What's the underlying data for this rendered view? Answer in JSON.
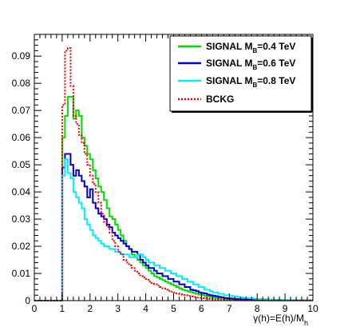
{
  "chart_data": {
    "type": "line",
    "title": "",
    "xlabel": "γ(h)=E(h)/M",
    "xlabel_sub": "h",
    "ylabel": "",
    "xlim": [
      0,
      10
    ],
    "ylim": [
      0,
      0.098
    ],
    "x_ticks": [
      "0",
      "1",
      "2",
      "3",
      "4",
      "5",
      "6",
      "7",
      "8",
      "9",
      "10"
    ],
    "y_ticks": [
      "0",
      "0.01",
      "0.02",
      "0.03",
      "0.04",
      "0.05",
      "0.06",
      "0.07",
      "0.08",
      "0.09"
    ],
    "grid": false,
    "legend_position": "top-right",
    "bin_width": 0.1,
    "series": [
      {
        "name": "SIGNAL M",
        "name_sub": "B",
        "name_suffix": "=0.4 TeV",
        "color": "#00dd00",
        "style": "solid",
        "x_start": 1.0,
        "values": [
          0.06,
          0.068,
          0.075,
          0.075,
          0.067,
          0.07,
          0.068,
          0.06,
          0.057,
          0.054,
          0.052,
          0.048,
          0.045,
          0.042,
          0.04,
          0.037,
          0.034,
          0.031,
          0.03,
          0.028,
          0.026,
          0.024,
          0.022,
          0.02,
          0.019,
          0.017,
          0.016,
          0.015,
          0.014,
          0.013,
          0.012,
          0.011,
          0.01,
          0.009,
          0.0085,
          0.008,
          0.0075,
          0.007,
          0.0065,
          0.006,
          0.0055,
          0.005,
          0.0045,
          0.004,
          0.0037,
          0.0034,
          0.0031,
          0.0028,
          0.0025,
          0.0022,
          0.002,
          0.0018,
          0.0016,
          0.0014,
          0.0012,
          0.001,
          0.0009,
          0.0008,
          0.0007,
          0.0006,
          0.0005,
          0.0005,
          0.0004,
          0.0004,
          0.0003,
          0.0003,
          0.0002,
          0.0002,
          0.0002,
          0.0001,
          0.0001,
          0.0001,
          0.0001,
          0.0001,
          0.0001,
          0.0001,
          0.0001,
          0.0001,
          0.0001,
          0.0001,
          0.0001,
          0.0001,
          0.0001,
          0.0001,
          0.0001,
          0.0001,
          0.0001,
          0.0001,
          0.0001,
          0.0001
        ]
      },
      {
        "name": "SIGNAL M",
        "name_sub": "B",
        "name_suffix": "=0.6 TeV",
        "color": "#0000cc",
        "style": "solid",
        "x_start": 1.0,
        "values": [
          0.049,
          0.054,
          0.054,
          0.05,
          0.046,
          0.048,
          0.046,
          0.044,
          0.042,
          0.038,
          0.041,
          0.036,
          0.034,
          0.032,
          0.031,
          0.03,
          0.028,
          0.027,
          0.025,
          0.024,
          0.023,
          0.022,
          0.021,
          0.02,
          0.019,
          0.018,
          0.018,
          0.017,
          0.015,
          0.014,
          0.013,
          0.012,
          0.012,
          0.011,
          0.01,
          0.01,
          0.009,
          0.009,
          0.008,
          0.008,
          0.007,
          0.007,
          0.006,
          0.006,
          0.005,
          0.005,
          0.004,
          0.0038,
          0.0035,
          0.003,
          0.0028,
          0.0026,
          0.0022,
          0.002,
          0.0018,
          0.0016,
          0.0014,
          0.0012,
          0.001,
          0.0009,
          0.0008,
          0.0007,
          0.0006,
          0.0005,
          0.0005,
          0.0004,
          0.0004,
          0.0003,
          0.0003,
          0.0003,
          0.0002,
          0.0002,
          0.0002,
          0.0002,
          0.0001,
          0.0001,
          0.0001,
          0.0001,
          0.0001,
          0.0001,
          0.0001,
          0.0001,
          0.0001,
          0.0001,
          0.0001,
          0.0001,
          0.0001,
          0.0001,
          0.0001,
          0.0001
        ]
      },
      {
        "name": "SIGNAL M",
        "name_sub": "B",
        "name_suffix": "=0.8 TeV",
        "color": "#00eeff",
        "style": "solid",
        "x_start": 1.0,
        "values": [
          0.046,
          0.052,
          0.047,
          0.045,
          0.04,
          0.038,
          0.036,
          0.034,
          0.03,
          0.028,
          0.026,
          0.024,
          0.023,
          0.022,
          0.021,
          0.02,
          0.02,
          0.019,
          0.019,
          0.018,
          0.018,
          0.017,
          0.017,
          0.017,
          0.016,
          0.016,
          0.016,
          0.017,
          0.017,
          0.016,
          0.015,
          0.014,
          0.014,
          0.013,
          0.013,
          0.012,
          0.012,
          0.011,
          0.011,
          0.01,
          0.01,
          0.009,
          0.009,
          0.008,
          0.008,
          0.007,
          0.007,
          0.006,
          0.006,
          0.005,
          0.005,
          0.004,
          0.004,
          0.0035,
          0.003,
          0.003,
          0.0025,
          0.0025,
          0.002,
          0.002,
          0.0018,
          0.0016,
          0.0015,
          0.0013,
          0.0012,
          0.001,
          0.001,
          0.0009,
          0.0008,
          0.0007,
          0.0006,
          0.0006,
          0.0005,
          0.0005,
          0.0004,
          0.0004,
          0.0003,
          0.0003,
          0.0003,
          0.0002,
          0.0002,
          0.0002,
          0.0002,
          0.0001,
          0.0001,
          0.0001,
          0.0001,
          0.0001,
          0.0001,
          0.0001
        ]
      },
      {
        "name": "BCKG",
        "color": "#ee0000",
        "style": "dotted",
        "x_start": 0.9,
        "values": [
          0.0,
          0.072,
          0.092,
          0.093,
          0.079,
          0.068,
          0.065,
          0.061,
          0.058,
          0.054,
          0.05,
          0.046,
          0.043,
          0.04,
          0.036,
          0.032,
          0.029,
          0.027,
          0.025,
          0.022,
          0.02,
          0.018,
          0.017,
          0.015,
          0.014,
          0.013,
          0.012,
          0.011,
          0.01,
          0.009,
          0.0085,
          0.008,
          0.007,
          0.0065,
          0.006,
          0.0055,
          0.005,
          0.0045,
          0.004,
          0.0036,
          0.0033,
          0.003,
          0.0027,
          0.0024,
          0.0021,
          0.0019,
          0.0017,
          0.0015,
          0.0013,
          0.0011,
          0.001,
          0.0009,
          0.0008,
          0.0007,
          0.0006,
          0.0005,
          0.0004,
          0.0004,
          0.0003,
          0.0003,
          0.0002,
          0.0002,
          0.0002,
          0.0001,
          0.0001,
          0.0001,
          0.0001,
          0.0001,
          0.0001,
          0.0001,
          0.0001,
          0.0001,
          0.0001,
          0.0001,
          0.0001,
          0.0001,
          0.0001,
          0.0001,
          0.0001,
          0.0001,
          0.0001,
          0.0001,
          0.0001,
          0.0001,
          0.0001,
          0.0001,
          0.0001,
          0.0001,
          0.0001,
          0.0001,
          0.0001
        ]
      }
    ]
  }
}
